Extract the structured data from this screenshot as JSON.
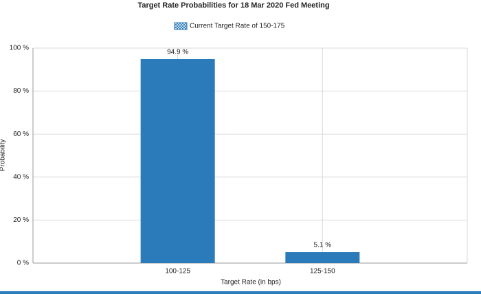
{
  "chart_data": {
    "type": "bar",
    "title": "Target Rate Probabilities for 18 Mar 2020 Fed Meeting",
    "x_label": "Target Rate (in bps)",
    "y_label": "Probability",
    "categories": [
      "100-125",
      "125-150"
    ],
    "series": [
      {
        "name": "Current Target Rate of 150-175",
        "color": "#2b7bba",
        "values": [
          94.9,
          5.1
        ],
        "value_labels": [
          "94.9 %",
          "5.1 %"
        ]
      }
    ],
    "ylim": [
      0,
      100
    ],
    "yticks": [
      {
        "value": 0,
        "label": "0 %"
      },
      {
        "value": 20,
        "label": "20 %"
      },
      {
        "value": 40,
        "label": "40 %"
      },
      {
        "value": 60,
        "label": "60 %"
      },
      {
        "value": 80,
        "label": "80 %"
      },
      {
        "value": 100,
        "label": "100 %"
      }
    ],
    "grid": true,
    "legend": "top"
  }
}
